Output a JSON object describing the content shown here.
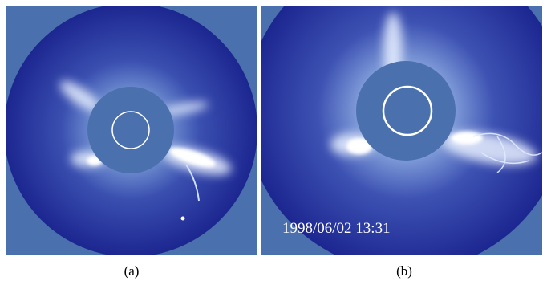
{
  "panels": [
    {
      "label": "(a)"
    },
    {
      "label": "(b)",
      "timestamp": "1998/06/02 13:31"
    }
  ]
}
